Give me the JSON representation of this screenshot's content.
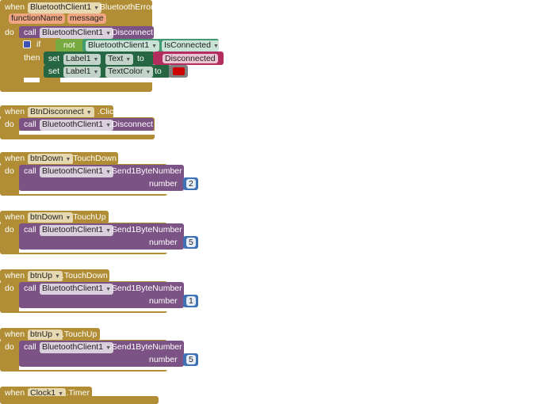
{
  "error_event": {
    "when": "when",
    "component": "BluetoothClient1",
    "event": ".BluetoothError",
    "params": [
      "functionName",
      "message"
    ],
    "do": "do",
    "call": "call",
    "call_component": "BluetoothClient1",
    "call_method": ".Disconnect",
    "if": "if",
    "then": "then",
    "not": "not",
    "getter_component": "BluetoothClient1",
    "getter_prop": "IsConnected",
    "set1": {
      "set": "set",
      "component": "Label1",
      "prop": "Text",
      "to": "to",
      "value": "Disconnected"
    },
    "set2": {
      "set": "set",
      "component": "Label1",
      "prop": "TextColor",
      "to": "to",
      "color": "#CC0000"
    }
  },
  "click_event": {
    "when": "when",
    "component": "BtnDisconnect",
    "event": ".Click",
    "do": "do",
    "call": "call",
    "call_component": "BluetoothClient1",
    "call_method": ".Disconnect"
  },
  "send_events": [
    {
      "component": "btnDown",
      "event": ".TouchDown",
      "value": "2"
    },
    {
      "component": "btnDown",
      "event": ".TouchUp",
      "value": "5"
    },
    {
      "component": "btnUp",
      "event": ".TouchDown",
      "value": "1"
    },
    {
      "component": "btnUp",
      "event": ".TouchUp",
      "value": "5"
    }
  ],
  "send_common": {
    "when": "when",
    "do": "do",
    "call": "call",
    "call_component": "BluetoothClient1",
    "call_method": ".Send1ByteNumber",
    "arg": "number"
  },
  "timer_event": {
    "when": "when",
    "component": "Clock1",
    "event": ".Timer"
  },
  "colors": {
    "event": "#B18E35",
    "procedure": "#7C5385",
    "logic": "#77AB41",
    "getter": "#439970",
    "setter": "#266643",
    "text": "#B32D5E",
    "math": "#3F71B5"
  }
}
